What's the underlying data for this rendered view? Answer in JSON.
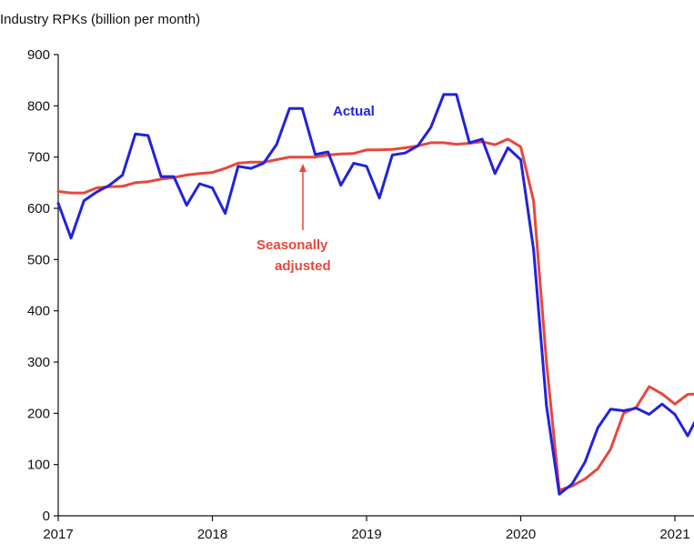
{
  "chart_data": {
    "type": "line",
    "title": "Industry RPKs (billion per month)",
    "xlabel": "",
    "ylabel": "",
    "xlim": [
      2017,
      2021.2
    ],
    "ylim": [
      0,
      900
    ],
    "y_ticks": [
      0,
      100,
      200,
      300,
      400,
      500,
      600,
      700,
      800,
      900
    ],
    "x_ticks": [
      2017,
      2018,
      2019,
      2020,
      2021
    ],
    "x_tick_labels": [
      "2017",
      "2018",
      "2019",
      "2020",
      "2021"
    ],
    "grid": false,
    "colors": {
      "actual": "#2222dd",
      "seasonally_adjusted": "#e8473c"
    },
    "series": [
      {
        "name": "Actual",
        "x": [
          2017.0,
          2017.083,
          2017.167,
          2017.25,
          2017.333,
          2017.417,
          2017.5,
          2017.583,
          2017.667,
          2017.75,
          2017.833,
          2017.917,
          2018.0,
          2018.083,
          2018.167,
          2018.25,
          2018.333,
          2018.417,
          2018.5,
          2018.583,
          2018.667,
          2018.75,
          2018.833,
          2018.917,
          2019.0,
          2019.083,
          2019.167,
          2019.25,
          2019.333,
          2019.417,
          2019.5,
          2019.583,
          2019.667,
          2019.75,
          2019.833,
          2019.917,
          2020.0,
          2020.083,
          2020.167,
          2020.25,
          2020.333,
          2020.417,
          2020.5,
          2020.583,
          2020.667,
          2020.75,
          2020.833,
          2020.917,
          2021.0,
          2021.083,
          2021.167
        ],
        "y": [
          610,
          542,
          615,
          632,
          645,
          665,
          745,
          742,
          662,
          662,
          606,
          648,
          640,
          590,
          682,
          678,
          688,
          725,
          795,
          795,
          705,
          710,
          645,
          688,
          682,
          620,
          704,
          708,
          722,
          758,
          822,
          822,
          728,
          735,
          668,
          718,
          695,
          520,
          215,
          42,
          62,
          105,
          172,
          208,
          205,
          210,
          198,
          218,
          198,
          156,
          205
        ]
      },
      {
        "name": "Seasonally adjusted",
        "x": [
          2017.0,
          2017.083,
          2017.167,
          2017.25,
          2017.333,
          2017.417,
          2017.5,
          2017.583,
          2017.667,
          2017.75,
          2017.833,
          2017.917,
          2018.0,
          2018.083,
          2018.167,
          2018.25,
          2018.333,
          2018.417,
          2018.5,
          2018.583,
          2018.667,
          2018.75,
          2018.833,
          2018.917,
          2019.0,
          2019.083,
          2019.167,
          2019.25,
          2019.333,
          2019.417,
          2019.5,
          2019.583,
          2019.667,
          2019.75,
          2019.833,
          2019.917,
          2020.0,
          2020.083,
          2020.167,
          2020.25,
          2020.333,
          2020.417,
          2020.5,
          2020.583,
          2020.667,
          2020.75,
          2020.833,
          2020.917,
          2021.0,
          2021.083,
          2021.167
        ],
        "y": [
          633,
          630,
          630,
          640,
          642,
          643,
          650,
          652,
          657,
          660,
          665,
          668,
          670,
          678,
          688,
          690,
          690,
          695,
          700,
          700,
          700,
          704,
          706,
          707,
          714,
          714,
          715,
          718,
          722,
          728,
          728,
          725,
          727,
          730,
          724,
          735,
          720,
          615,
          300,
          50,
          58,
          72,
          92,
          130,
          200,
          212,
          252,
          238,
          218,
          237,
          238
        ]
      }
    ],
    "annotations": [
      {
        "text": "Actual",
        "color": "#2222dd"
      },
      {
        "text_lines": [
          "Seasonally",
          "adjusted"
        ],
        "color": "#e8473c",
        "arrow_to": {
          "x": 2018.583,
          "y": 700
        }
      }
    ]
  }
}
